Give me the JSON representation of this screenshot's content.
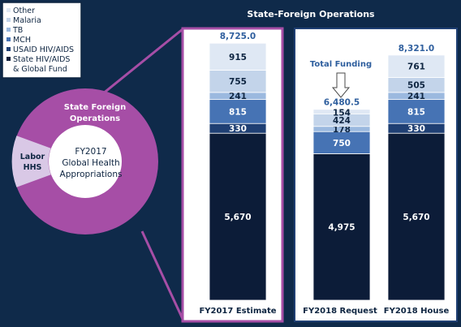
{
  "title": "State-Foreign Operations",
  "legend": [
    {
      "label": "Other",
      "color": "#dfe8f4"
    },
    {
      "label": "Malaria",
      "color": "#c3d4ea"
    },
    {
      "label": "TB",
      "color": "#9bb9df"
    },
    {
      "label": "MCH",
      "color": "#4673b4"
    },
    {
      "label": "USAID HIV/AIDS",
      "color": "#1f3f73"
    },
    {
      "label": "State HIV/AIDS",
      "color": "#0c1c38"
    },
    {
      "label": "& Global Fund",
      "color": ""
    }
  ],
  "donut": {
    "outer_label_line1": "State Foreign",
    "outer_label_line2": "Operations",
    "side_label_line1": "Labor",
    "side_label_line2": "HHS",
    "center_line1": "FY2017",
    "center_line2": "Global Health",
    "center_line3": "Appropriations",
    "colors": {
      "sfo": "#a64ea6",
      "labor": "#d9c8e6",
      "center": "#ffffff"
    }
  },
  "annotation": "Total Funding",
  "chart_data": {
    "type": "bar",
    "stacked": true,
    "title": "State-Foreign Operations",
    "categories": [
      "FY2017 Estimate",
      "FY2018 Request",
      "FY2018 House"
    ],
    "series": [
      {
        "name": "State HIV/AIDS & Global Fund",
        "values": [
          5670,
          4975,
          5670
        ],
        "color": "#0c1c38"
      },
      {
        "name": "USAID HIV/AIDS",
        "values": [
          330,
          0,
          330
        ],
        "color": "#1f3f73"
      },
      {
        "name": "MCH",
        "values": [
          815,
          750,
          815
        ],
        "color": "#4673b4"
      },
      {
        "name": "TB",
        "values": [
          241,
          178,
          241
        ],
        "color": "#9bb9df"
      },
      {
        "name": "Malaria",
        "values": [
          755,
          424,
          505
        ],
        "color": "#c3d4ea"
      },
      {
        "name": "Other",
        "values": [
          915,
          154,
          761
        ],
        "color": "#dfe8f4"
      }
    ],
    "totals": [
      "8,725.0",
      "6,480.5",
      "8,321.0"
    ],
    "segment_labels": [
      [
        "5,670",
        "330",
        "815",
        "241",
        "755",
        "915"
      ],
      [
        "4,975",
        "",
        "750",
        "178",
        "424",
        "154"
      ],
      [
        "5,670",
        "330",
        "815",
        "241",
        "505",
        "761"
      ]
    ]
  }
}
